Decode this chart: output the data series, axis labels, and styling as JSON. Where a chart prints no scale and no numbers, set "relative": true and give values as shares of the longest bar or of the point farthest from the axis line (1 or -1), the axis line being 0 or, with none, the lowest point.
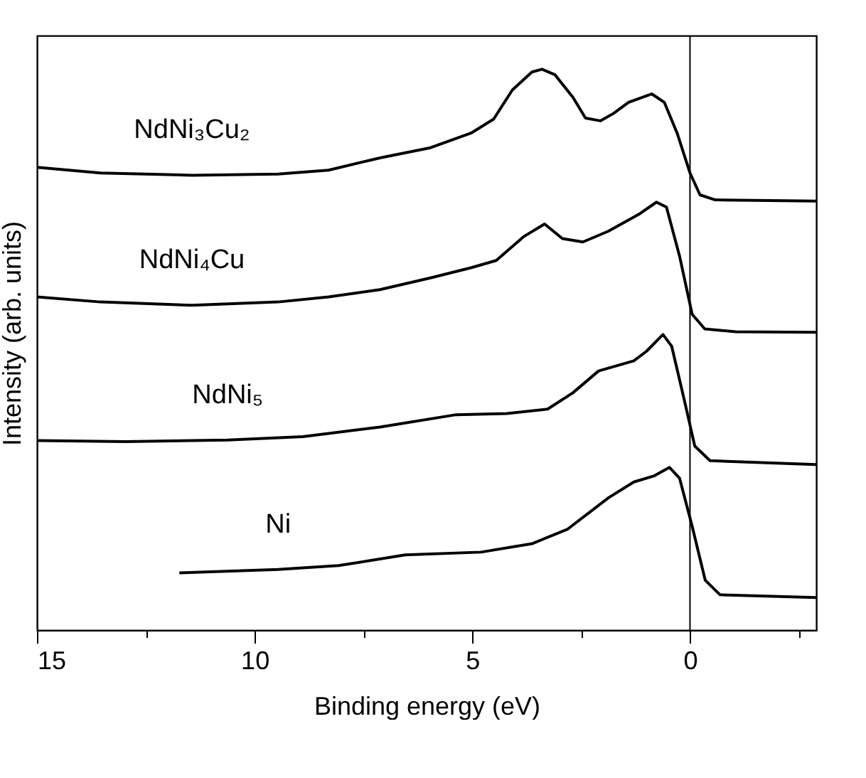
{
  "chart_data": {
    "type": "line",
    "relative": true,
    "xlabel": "Binding energy (eV)",
    "ylabel": "Intensity (arb. units)",
    "xlim": [
      15,
      -2.9
    ],
    "xticks": [
      15,
      {
        "value": 12.5,
        "label": null
      },
      10,
      {
        "value": 7.5,
        "label": null
      },
      5,
      {
        "value": 2.5,
        "label": null
      },
      0,
      {
        "value": -2.5,
        "label": null
      }
    ],
    "ref_lines": [
      {
        "axis": "x",
        "value": 0,
        "color": "#000000"
      }
    ],
    "grid": false,
    "marker": "none",
    "line_style": "solid",
    "series": [
      {
        "name": "NdNi₃Cu₂",
        "color": "#000000",
        "x": [
          15,
          13.54,
          11.44,
          9.46,
          8.3,
          7.12,
          5.96,
          5.03,
          4.51,
          4.08,
          3.63,
          3.4,
          3.1,
          2.69,
          2.4,
          2.06,
          1.76,
          1.41,
          0.88,
          0.59,
          0.29,
          0,
          -0.23,
          -0.58,
          -2.9
        ],
        "values": [
          0.825,
          0.815,
          0.811,
          0.813,
          0.82,
          0.842,
          0.86,
          0.886,
          0.911,
          0.963,
          0.995,
          1.0,
          0.99,
          0.95,
          0.913,
          0.908,
          0.921,
          0.941,
          0.956,
          0.941,
          0.885,
          0.815,
          0.776,
          0.767,
          0.765
        ]
      },
      {
        "name": "NdNi₄Cu",
        "color": "#000000",
        "x": [
          15,
          13.54,
          11.44,
          9.46,
          8.3,
          7.12,
          5.96,
          5.03,
          4.45,
          3.81,
          3.34,
          2.93,
          2.46,
          1.88,
          1.18,
          0.77,
          0.54,
          0.24,
          -0.05,
          -0.34,
          -1.05,
          -2.9
        ],
        "values": [
          0.594,
          0.585,
          0.579,
          0.585,
          0.594,
          0.607,
          0.628,
          0.646,
          0.659,
          0.702,
          0.724,
          0.698,
          0.692,
          0.711,
          0.741,
          0.763,
          0.754,
          0.667,
          0.563,
          0.537,
          0.532,
          0.531
        ]
      },
      {
        "name": "NdNi₅",
        "color": "#000000",
        "x": [
          15,
          12.96,
          10.62,
          8.89,
          7.12,
          5.37,
          4.21,
          3.27,
          2.69,
          2.1,
          1.29,
          1.0,
          0.62,
          0.42,
          0.13,
          -0.11,
          -0.46,
          -2.9
        ],
        "values": [
          0.338,
          0.336,
          0.339,
          0.345,
          0.362,
          0.384,
          0.386,
          0.394,
          0.423,
          0.462,
          0.48,
          0.497,
          0.527,
          0.506,
          0.41,
          0.328,
          0.302,
          0.295
        ]
      },
      {
        "name": "Ni",
        "color": "#000000",
        "x": [
          11.73,
          9.46,
          8.07,
          6.54,
          4.8,
          3.63,
          2.81,
          1.87,
          1.29,
          0.82,
          0.47,
          0.24,
          -0.05,
          -0.35,
          -0.69,
          -2.9
        ],
        "values": [
          0.102,
          0.108,
          0.115,
          0.134,
          0.139,
          0.154,
          0.18,
          0.236,
          0.264,
          0.275,
          0.29,
          0.271,
          0.185,
          0.089,
          0.063,
          0.058
        ]
      }
    ]
  }
}
